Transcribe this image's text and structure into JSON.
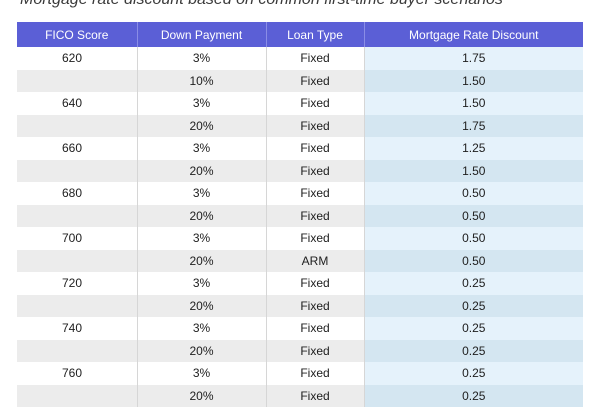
{
  "caption": "Mortgage rate discount based on common first-time buyer scenarios",
  "chart_data": {
    "type": "table",
    "title": "Mortgage rate discount based on common first-time buyer scenarios",
    "columns": [
      "FICO Score",
      "Down Payment",
      "Loan Type",
      "Mortgage Rate Discount"
    ],
    "rows": [
      [
        "620",
        "3%",
        "Fixed",
        "1.75"
      ],
      [
        "",
        "10%",
        "Fixed",
        "1.50"
      ],
      [
        "640",
        "3%",
        "Fixed",
        "1.50"
      ],
      [
        "",
        "20%",
        "Fixed",
        "1.75"
      ],
      [
        "660",
        "3%",
        "Fixed",
        "1.25"
      ],
      [
        "",
        "20%",
        "Fixed",
        "1.50"
      ],
      [
        "680",
        "3%",
        "Fixed",
        "0.50"
      ],
      [
        "",
        "20%",
        "Fixed",
        "0.50"
      ],
      [
        "700",
        "3%",
        "Fixed",
        "0.50"
      ],
      [
        "",
        "20%",
        "ARM",
        "0.50"
      ],
      [
        "720",
        "3%",
        "Fixed",
        "0.25"
      ],
      [
        "",
        "20%",
        "Fixed",
        "0.25"
      ],
      [
        "740",
        "3%",
        "Fixed",
        "0.25"
      ],
      [
        "",
        "20%",
        "Fixed",
        "0.25"
      ],
      [
        "760",
        "3%",
        "Fixed",
        "0.25"
      ],
      [
        "",
        "20%",
        "Fixed",
        "0.25"
      ]
    ]
  },
  "colors": {
    "header": "#5b5fd6",
    "row_alt": "#ececec",
    "discount_column": "#e5f2fb",
    "discount_column_alt": "#d4e6f1"
  }
}
